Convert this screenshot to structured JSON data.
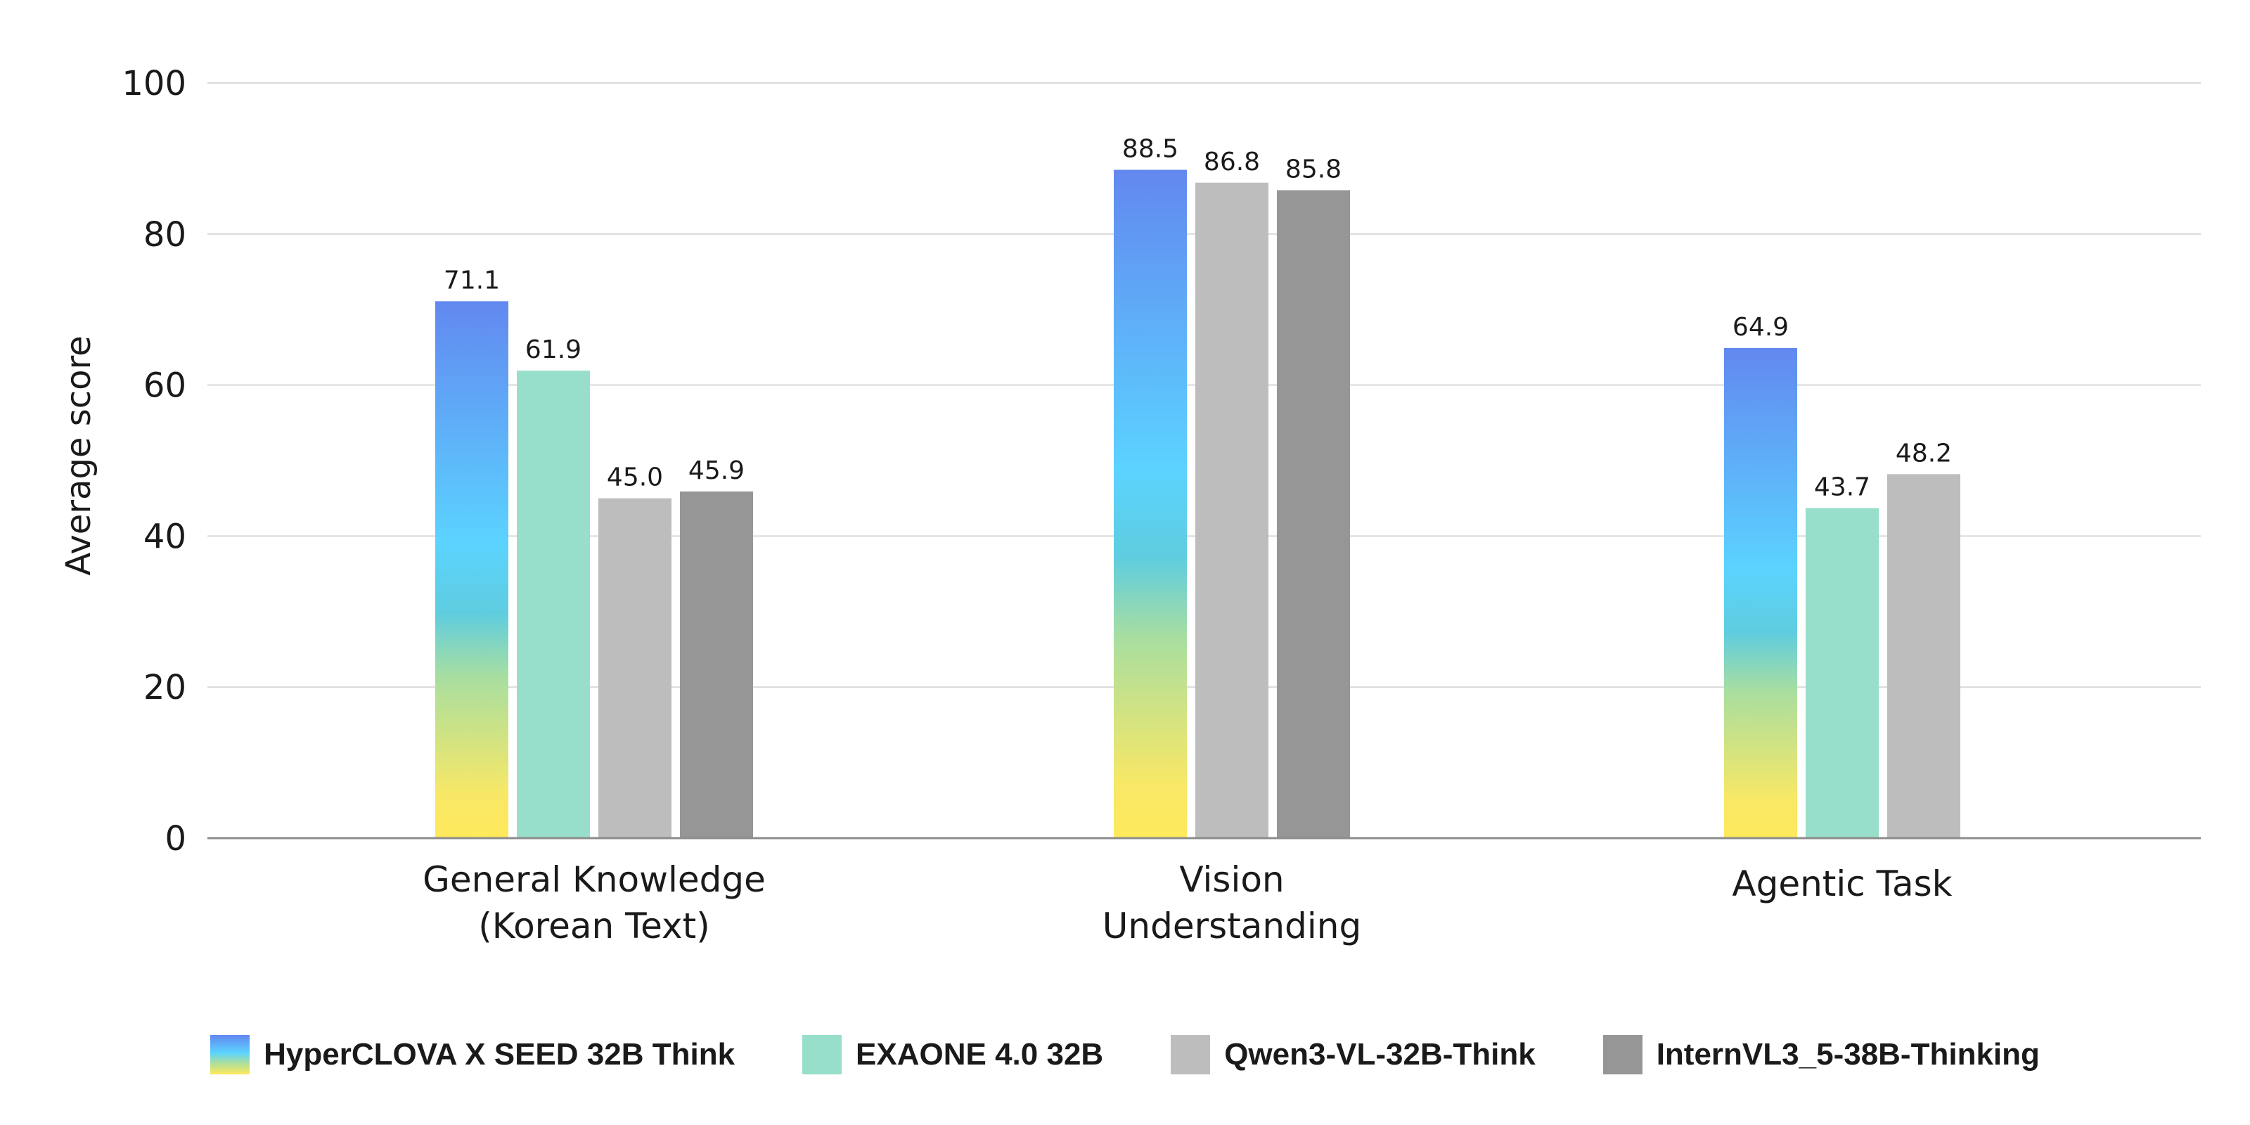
{
  "chart_data": {
    "type": "bar",
    "title": "",
    "xlabel": "",
    "ylabel": "Average score",
    "ylim": [
      0,
      100
    ],
    "yticks": [
      0,
      20,
      40,
      60,
      80,
      100
    ],
    "grid": true,
    "legend_position": "bottom",
    "categories": [
      [
        "General Knowledge",
        "(Korean Text)"
      ],
      [
        "Vision",
        "Understanding"
      ],
      [
        "Agentic Task"
      ]
    ],
    "series": [
      {
        "name": "HyperCLOVA X SEED 32B Think",
        "color": "gradient:#ffe95c-#5cd4ff-#6288f0",
        "values": [
          71.1,
          88.5,
          64.9
        ]
      },
      {
        "name": "EXAONE 4.0 32B",
        "color": "#97dfca",
        "values": [
          61.9,
          null,
          43.7
        ]
      },
      {
        "name": "Qwen3-VL-32B-Think",
        "color": "#bdbdbd",
        "values": [
          45.0,
          86.8,
          48.2
        ]
      },
      {
        "name": "InternVL3_5-38B-Thinking",
        "color": "#969696",
        "values": [
          45.9,
          85.8,
          null
        ]
      }
    ]
  }
}
